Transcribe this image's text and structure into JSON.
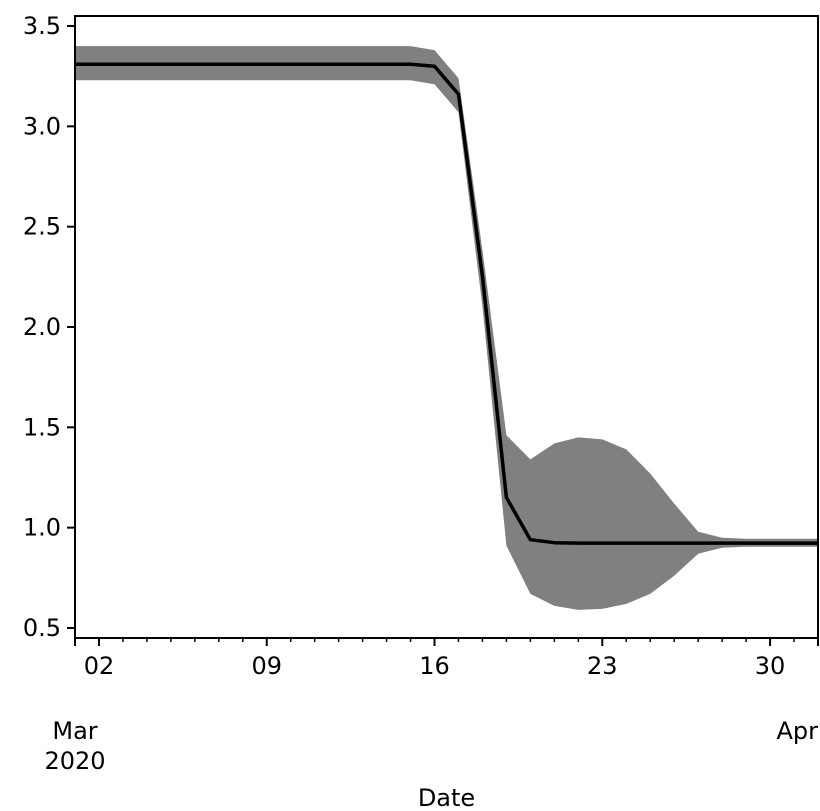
{
  "chart_data": {
    "type": "line",
    "title": "",
    "xlabel": "Date",
    "ylabel": "",
    "xlim": [
      "2020-03-01",
      "2020-04-01"
    ],
    "ylim": [
      0.45,
      3.55
    ],
    "grid": false,
    "legend": "none",
    "colors": {
      "line": "#000000",
      "band": "#808080",
      "axes": "#000000"
    },
    "x_ticks": [
      "02",
      "09",
      "16",
      "23",
      "30"
    ],
    "x_tick_dates": [
      "2020-03-02",
      "2020-03-09",
      "2020-03-16",
      "2020-03-23",
      "2020-03-30"
    ],
    "month_labels": [
      {
        "date": "2020-03-01",
        "line1": "Mar",
        "line2": "2020"
      },
      {
        "date": "2020-04-01",
        "line1": "Apr",
        "line2": ""
      }
    ],
    "y_ticks": [
      0.5,
      1.0,
      1.5,
      2.0,
      2.5,
      3.0,
      3.5
    ],
    "y_tick_labels": [
      "0.5",
      "1.0",
      "1.5",
      "2.0",
      "2.5",
      "3.0",
      "3.5"
    ],
    "series": [
      {
        "x": [
          "2020-03-01",
          "2020-03-02",
          "2020-03-03",
          "2020-03-04",
          "2020-03-05",
          "2020-03-06",
          "2020-03-07",
          "2020-03-08",
          "2020-03-09",
          "2020-03-10",
          "2020-03-11",
          "2020-03-12",
          "2020-03-13",
          "2020-03-14",
          "2020-03-15",
          "2020-03-16",
          "2020-03-17",
          "2020-03-18",
          "2020-03-19",
          "2020-03-20",
          "2020-03-21",
          "2020-03-22",
          "2020-03-23",
          "2020-03-24",
          "2020-03-25",
          "2020-03-26",
          "2020-03-27",
          "2020-03-28",
          "2020-03-29",
          "2020-03-30",
          "2020-03-31",
          "2020-04-01"
        ],
        "values": [
          3.31,
          3.31,
          3.31,
          3.31,
          3.31,
          3.31,
          3.31,
          3.31,
          3.31,
          3.31,
          3.31,
          3.31,
          3.31,
          3.31,
          3.31,
          3.3,
          3.16,
          2.25,
          1.15,
          0.94,
          0.925,
          0.923,
          0.923,
          0.923,
          0.923,
          0.923,
          0.923,
          0.923,
          0.923,
          0.923,
          0.923,
          0.923
        ],
        "lower": [
          3.23,
          3.23,
          3.23,
          3.23,
          3.23,
          3.23,
          3.23,
          3.23,
          3.23,
          3.23,
          3.23,
          3.23,
          3.23,
          3.23,
          3.23,
          3.21,
          3.07,
          2.1,
          0.91,
          0.67,
          0.61,
          0.59,
          0.595,
          0.62,
          0.67,
          0.76,
          0.87,
          0.9,
          0.905,
          0.905,
          0.905,
          0.905
        ],
        "upper": [
          3.4,
          3.4,
          3.4,
          3.4,
          3.4,
          3.4,
          3.4,
          3.4,
          3.4,
          3.4,
          3.4,
          3.4,
          3.4,
          3.4,
          3.4,
          3.38,
          3.24,
          2.38,
          1.46,
          1.34,
          1.42,
          1.45,
          1.44,
          1.39,
          1.27,
          1.12,
          0.98,
          0.95,
          0.945,
          0.945,
          0.945,
          0.945
        ]
      }
    ]
  }
}
